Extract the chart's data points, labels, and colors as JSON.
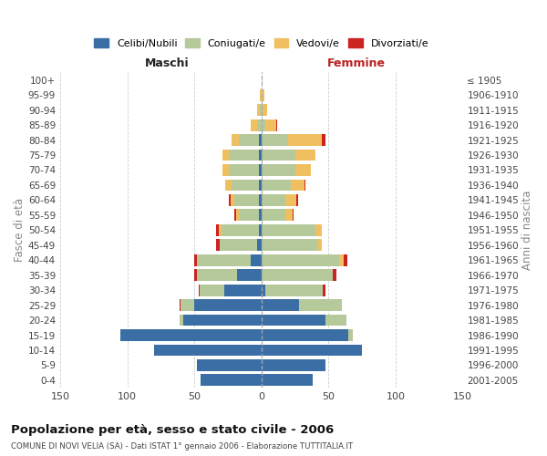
{
  "age_groups": [
    "0-4",
    "5-9",
    "10-14",
    "15-19",
    "20-24",
    "25-29",
    "30-34",
    "35-39",
    "40-44",
    "45-49",
    "50-54",
    "55-59",
    "60-64",
    "65-69",
    "70-74",
    "75-79",
    "80-84",
    "85-89",
    "90-94",
    "95-99",
    "100+"
  ],
  "birth_years": [
    "2001-2005",
    "1996-2000",
    "1991-1995",
    "1986-1990",
    "1981-1985",
    "1976-1980",
    "1971-1975",
    "1966-1970",
    "1961-1965",
    "1956-1960",
    "1951-1955",
    "1946-1950",
    "1941-1945",
    "1936-1940",
    "1931-1935",
    "1926-1930",
    "1921-1925",
    "1916-1920",
    "1911-1915",
    "1906-1910",
    "≤ 1905"
  ],
  "maschi_celibi": [
    45,
    48,
    80,
    105,
    58,
    50,
    28,
    18,
    8,
    3,
    2,
    2,
    2,
    2,
    2,
    2,
    2,
    0,
    0,
    0,
    0
  ],
  "maschi_coniugati": [
    0,
    0,
    0,
    0,
    3,
    10,
    18,
    30,
    40,
    28,
    28,
    15,
    18,
    20,
    22,
    22,
    15,
    3,
    1,
    0,
    0
  ],
  "maschi_vedovi": [
    0,
    0,
    0,
    0,
    0,
    0,
    0,
    0,
    0,
    0,
    2,
    2,
    3,
    5,
    5,
    5,
    5,
    5,
    2,
    1,
    0
  ],
  "maschi_divorziati": [
    0,
    0,
    0,
    0,
    0,
    1,
    1,
    2,
    2,
    3,
    2,
    1,
    1,
    0,
    0,
    0,
    0,
    0,
    0,
    0,
    0
  ],
  "femmine_nubili": [
    38,
    48,
    75,
    65,
    48,
    28,
    3,
    0,
    0,
    0,
    0,
    0,
    0,
    0,
    0,
    0,
    0,
    0,
    0,
    0,
    0
  ],
  "femmine_coniugate": [
    0,
    0,
    0,
    3,
    15,
    32,
    43,
    53,
    58,
    42,
    40,
    18,
    18,
    22,
    25,
    25,
    20,
    3,
    1,
    0,
    0
  ],
  "femmine_vedove": [
    0,
    0,
    0,
    0,
    0,
    0,
    0,
    0,
    3,
    3,
    5,
    5,
    8,
    10,
    12,
    15,
    25,
    8,
    3,
    2,
    0
  ],
  "femmine_divorziate": [
    0,
    0,
    0,
    0,
    0,
    0,
    2,
    3,
    3,
    0,
    0,
    1,
    1,
    1,
    0,
    0,
    3,
    1,
    0,
    0,
    0
  ],
  "color_celibi": "#3a6ea5",
  "color_coniugati": "#b5c99a",
  "color_vedovi": "#f0c060",
  "color_divorziati": "#cc2222",
  "xlim": 150,
  "title": "Popolazione per età, sesso e stato civile - 2006",
  "subtitle": "COMUNE DI NOVI VELIA (SA) - Dati ISTAT 1° gennaio 2006 - Elaborazione TUTTITALIA.IT",
  "ylabel_left": "Fasce di età",
  "ylabel_right": "Anni di nascita",
  "label_maschi": "Maschi",
  "label_femmine": "Femmine",
  "legend_labels": [
    "Celibi/Nubili",
    "Coniugati/e",
    "Vedovi/e",
    "Divorziati/e"
  ],
  "bg_color": "#ffffff",
  "grid_color": "#cccccc",
  "bar_height": 0.78
}
